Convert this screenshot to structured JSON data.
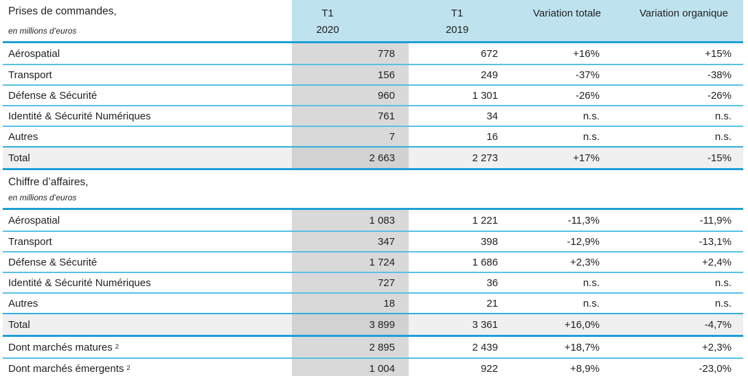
{
  "colors": {
    "header_bg": "#BEE3EF",
    "line_thin": "#56C0E6",
    "line_strong": "#1D9FD6",
    "line_total_top": "#33ADDE",
    "col2020_bg": "#D9D9D9",
    "col2020_total_bg": "#D2D2D2",
    "total_row_bg": "#F0F0F0",
    "text": "#1F1F1F"
  },
  "columns": [
    {
      "line1": "T1",
      "line2": "2020"
    },
    {
      "line1": "T1",
      "line2": "2019"
    },
    {
      "line1": "Variation totale",
      "line2": ""
    },
    {
      "line1": "Variation organique",
      "line2": ""
    }
  ],
  "sections": [
    {
      "title": "Prises de commandes,",
      "subtitle": "en millions d’euros",
      "rows": [
        {
          "label": "Aérospatial",
          "v2020": "778",
          "v2019": "672",
          "vtot": "+16%",
          "vorg": "+15%",
          "type": "normal"
        },
        {
          "label": "Transport",
          "v2020": "156",
          "v2019": "249",
          "vtot": "-37%",
          "vorg": "-38%",
          "type": "normal"
        },
        {
          "label": "Défense & Sécurité",
          "v2020": "960",
          "v2019": "1 301",
          "vtot": "-26%",
          "vorg": "-26%",
          "type": "normal"
        },
        {
          "label": "Identité & Sécurité Numériques",
          "v2020": "761",
          "v2019": "34",
          "vtot": "n.s.",
          "vorg": "n.s.",
          "type": "normal"
        },
        {
          "label": "Autres",
          "v2020": "7",
          "v2019": "16",
          "vtot": "n.s.",
          "vorg": "n.s.",
          "type": "normal"
        },
        {
          "label": "Total",
          "v2020": "2 663",
          "v2019": "2 273",
          "vtot": "+17%",
          "vorg": "-15%",
          "type": "total"
        }
      ]
    },
    {
      "title": "Chiffre d’affaires,",
      "subtitle": "en millions d’euros",
      "rows": [
        {
          "label": "Aérospatial",
          "v2020": "1 083",
          "v2019": "1 221",
          "vtot": "-11,3%",
          "vorg": "-11,9%",
          "type": "normal"
        },
        {
          "label": "Transport",
          "v2020": "347",
          "v2019": "398",
          "vtot": "-12,9%",
          "vorg": "-13,1%",
          "type": "normal"
        },
        {
          "label": "Défense & Sécurité",
          "v2020": "1 724",
          "v2019": "1 686",
          "vtot": "+2,3%",
          "vorg": "+2,4%",
          "type": "normal"
        },
        {
          "label": "Identité & Sécurité Numériques",
          "v2020": "727",
          "v2019": "36",
          "vtot": "n.s.",
          "vorg": "n.s.",
          "type": "normal"
        },
        {
          "label": "Autres",
          "v2020": "18",
          "v2019": "21",
          "vtot": "n.s.",
          "vorg": "n.s.",
          "type": "normal"
        },
        {
          "label": "Total",
          "v2020": "3 899",
          "v2019": "3 361",
          "vtot": "+16,0%",
          "vorg": "-4,7%",
          "type": "total"
        },
        {
          "label": "Dont marchés matures",
          "sup": "2",
          "v2020": "2 895",
          "v2019": "2 439",
          "vtot": "+18,7%",
          "vorg": "+2,3%",
          "type": "normal"
        },
        {
          "label": "Dont marchés émergents",
          "sup": "2",
          "v2020": "1 004",
          "v2019": "922",
          "vtot": "+8,9%",
          "vorg": "-23,0%",
          "type": "normal"
        }
      ]
    }
  ]
}
